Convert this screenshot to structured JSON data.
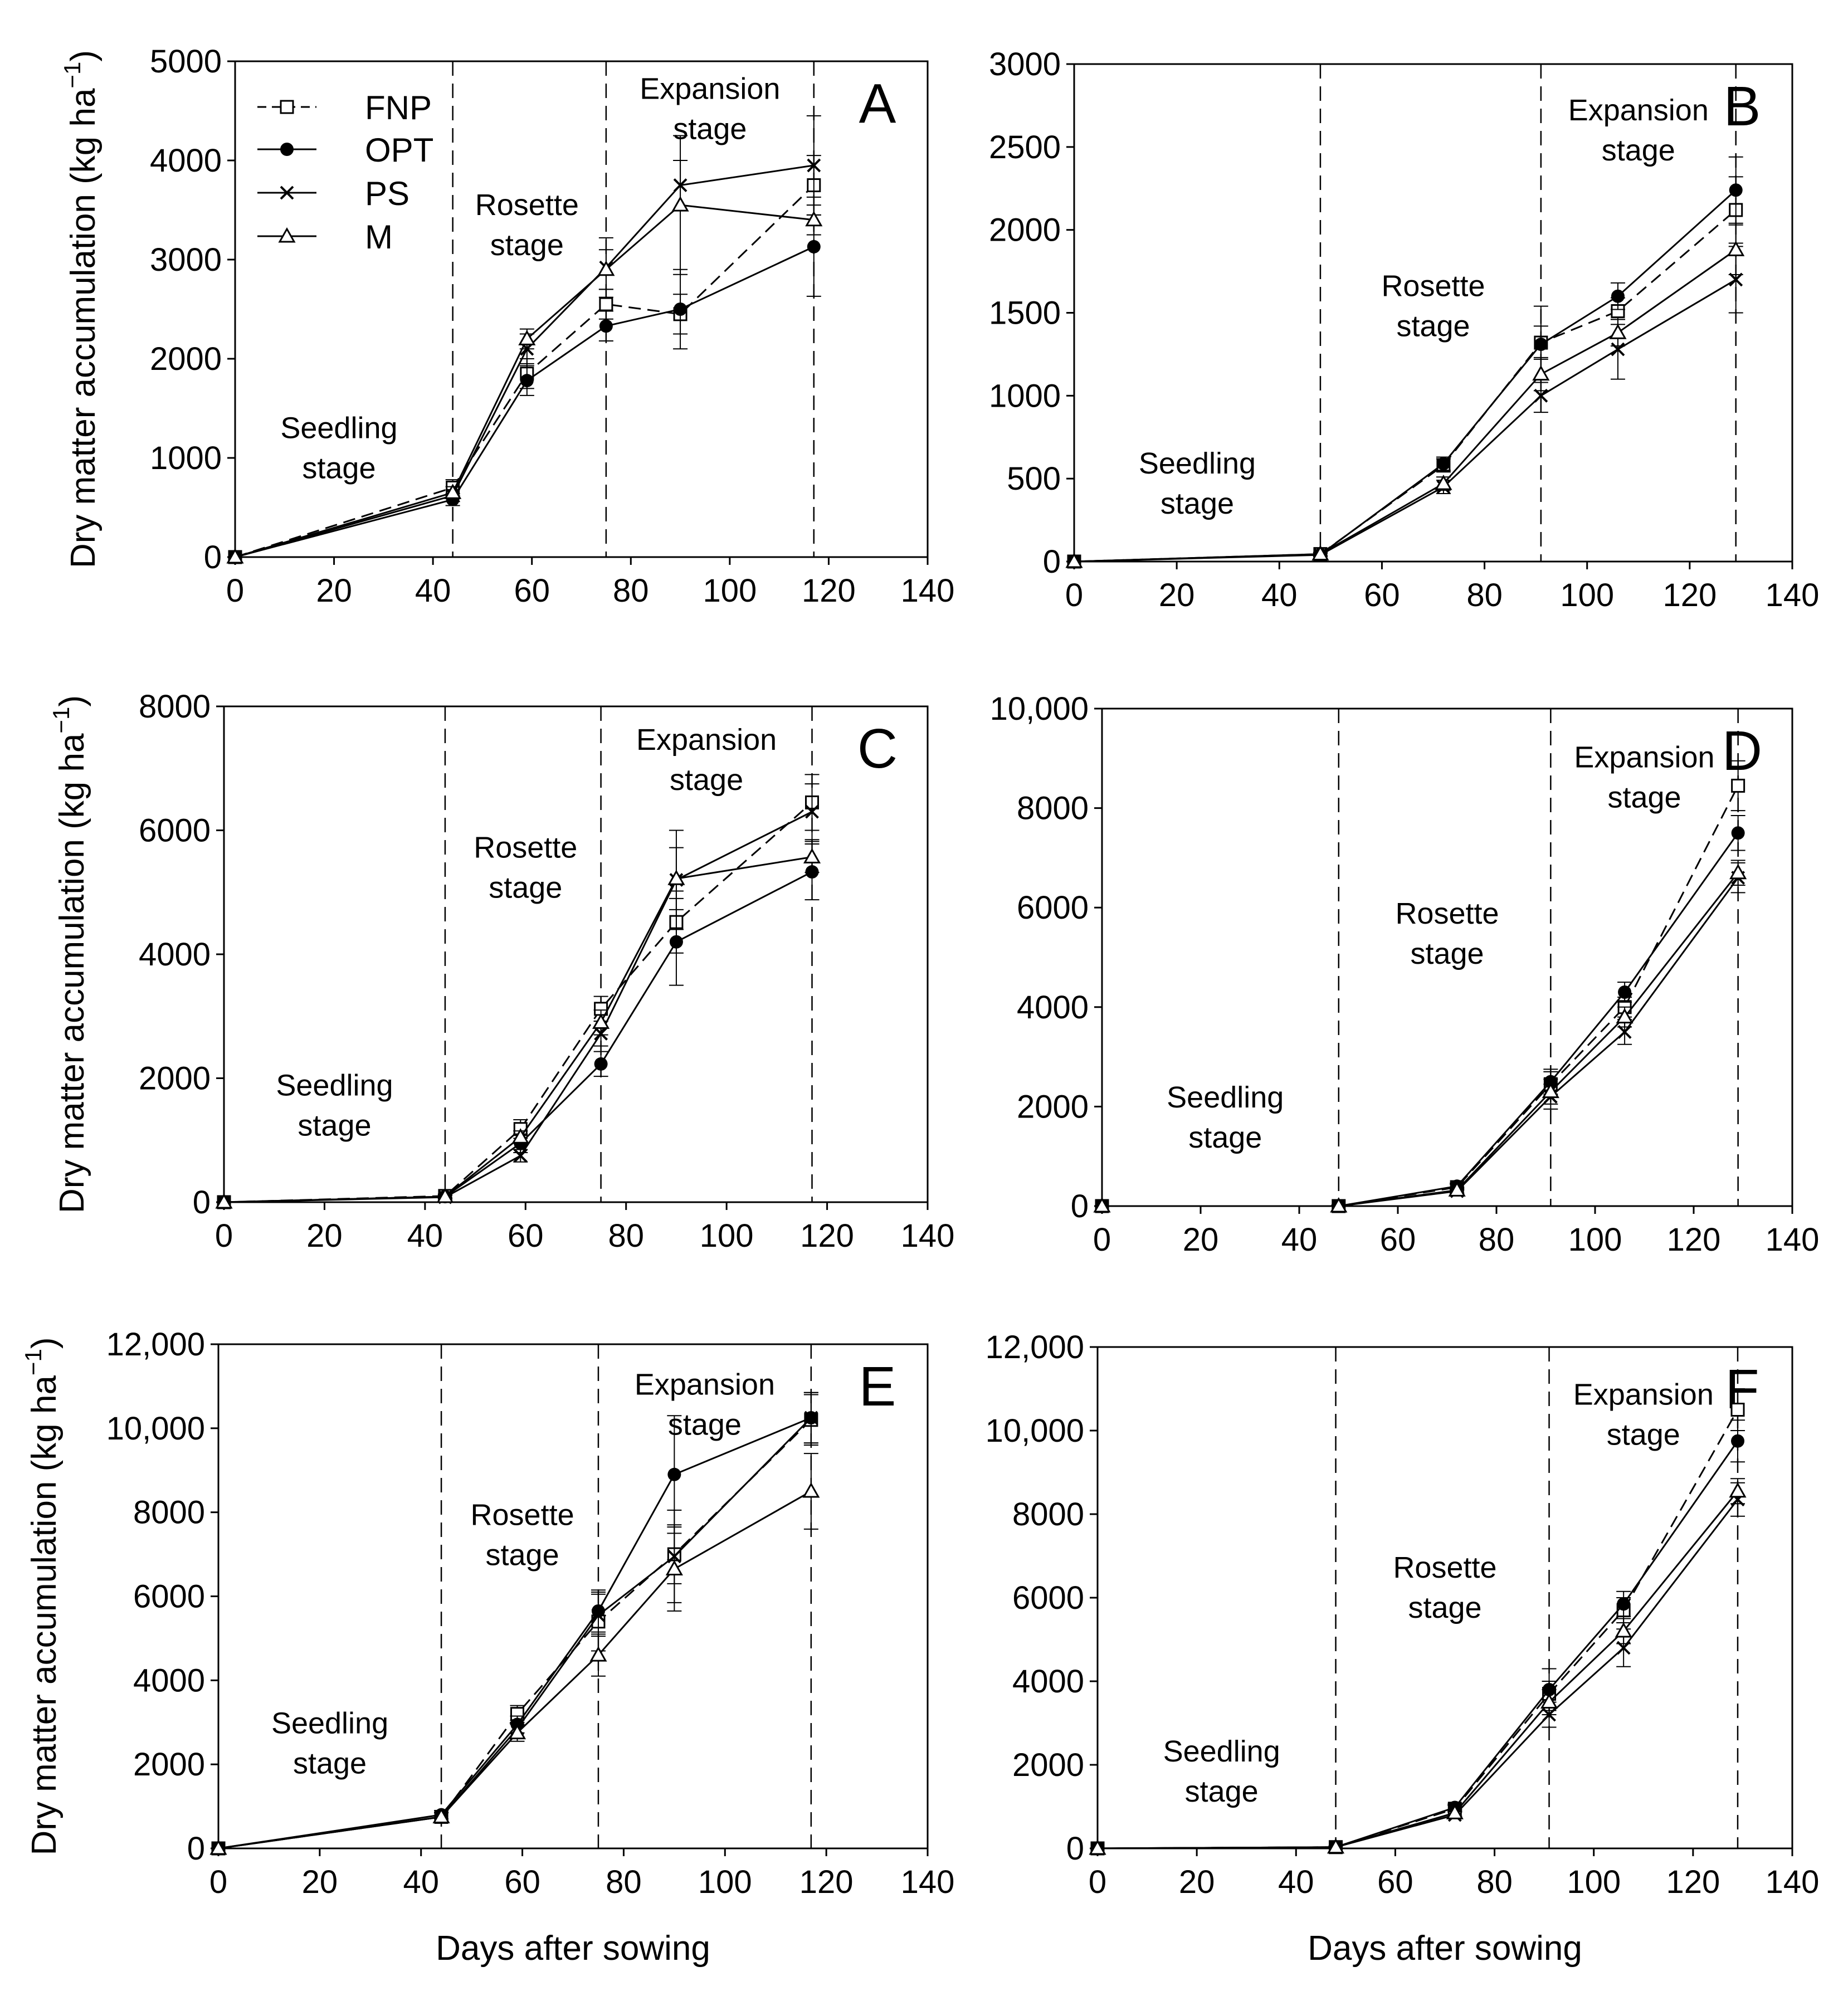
{
  "figure": {
    "ylabel": "Dry matter accumulation (kg ha",
    "ylabel_sup": "−1",
    "ylabel_close": ")",
    "xlabel": "Days after sowing"
  },
  "legend": {
    "FNP": "FNP",
    "OPT": "OPT",
    "PS": "PS",
    "M": "M"
  },
  "colors": {
    "ink": "#000000",
    "background": "#ffffff"
  },
  "chart_data": [
    {
      "type": "line",
      "panel": "A",
      "xlim": [
        0,
        140
      ],
      "ylim": [
        0,
        5000
      ],
      "xticks": [
        0,
        20,
        40,
        60,
        80,
        100,
        120,
        140
      ],
      "yticks": [
        0,
        1000,
        2000,
        3000,
        4000,
        5000
      ],
      "ytick_labels": [
        "0",
        "1000",
        "2000",
        "3000",
        "4000",
        "5000"
      ],
      "stage_boundaries": [
        44,
        75,
        117
      ],
      "stages": [
        {
          "line1": "Seedling",
          "line2": "stage",
          "x": 21,
          "y": 1200
        },
        {
          "line1": "Rosette",
          "line2": "stage",
          "x": 59,
          "y": 3450
        },
        {
          "line1": "Expansion",
          "line2": "stage",
          "x": 96,
          "y": 4620
        }
      ],
      "series": [
        {
          "name": "FNP",
          "x": [
            0,
            44,
            59,
            75,
            90,
            117
          ],
          "values": [
            0,
            700,
            1850,
            2550,
            2450,
            3750
          ],
          "errors": [
            0,
            80,
            150,
            150,
            200,
            300
          ]
        },
        {
          "name": "OPT",
          "x": [
            0,
            44,
            59,
            75,
            90,
            117
          ],
          "values": [
            0,
            580,
            1780,
            2330,
            2500,
            3130
          ],
          "errors": [
            0,
            60,
            150,
            150,
            400,
            500
          ]
        },
        {
          "name": "PS",
          "x": [
            0,
            44,
            59,
            75,
            90,
            117
          ],
          "values": [
            0,
            620,
            2100,
            2920,
            3750,
            3950
          ],
          "errors": [
            0,
            60,
            150,
            300,
            250,
            500
          ]
        },
        {
          "name": "M",
          "x": [
            0,
            44,
            59,
            75,
            90,
            117
          ],
          "values": [
            0,
            650,
            2200,
            2900,
            3550,
            3400
          ],
          "errors": [
            0,
            60,
            100,
            200,
            700,
            150
          ]
        }
      ]
    },
    {
      "type": "line",
      "panel": "B",
      "xlim": [
        0,
        140
      ],
      "ylim": [
        0,
        3000
      ],
      "xticks": [
        0,
        20,
        40,
        60,
        80,
        100,
        120,
        140
      ],
      "yticks": [
        0,
        500,
        1000,
        1500,
        2000,
        2500,
        3000
      ],
      "ytick_labels": [
        "0",
        "500",
        "1000",
        "1500",
        "2000",
        "2500",
        "3000"
      ],
      "stage_boundaries": [
        48,
        91,
        129
      ],
      "stages": [
        {
          "line1": "Seedling",
          "line2": "stage",
          "x": 24,
          "y": 530
        },
        {
          "line1": "Rosette",
          "line2": "stage",
          "x": 70,
          "y": 1600
        },
        {
          "line1": "Expansion",
          "line2": "stage",
          "x": 110,
          "y": 2660
        }
      ],
      "series": [
        {
          "name": "FNP",
          "x": [
            0,
            48,
            72,
            91,
            106,
            129
          ],
          "values": [
            0,
            45,
            580,
            1320,
            1510,
            2120
          ],
          "errors": [
            0,
            10,
            40,
            100,
            80,
            200
          ]
        },
        {
          "name": "OPT",
          "x": [
            0,
            48,
            72,
            91,
            106,
            129
          ],
          "values": [
            0,
            42,
            590,
            1310,
            1600,
            2240
          ],
          "errors": [
            0,
            10,
            40,
            230,
            80,
            200
          ]
        },
        {
          "name": "PS",
          "x": [
            0,
            48,
            72,
            91,
            106,
            129
          ],
          "values": [
            0,
            40,
            450,
            1000,
            1280,
            1700
          ],
          "errors": [
            0,
            10,
            40,
            100,
            180,
            200
          ]
        },
        {
          "name": "M",
          "x": [
            0,
            48,
            72,
            91,
            106,
            129
          ],
          "values": [
            0,
            45,
            470,
            1130,
            1380,
            1880
          ],
          "errors": [
            0,
            10,
            40,
            100,
            80,
            150
          ]
        }
      ]
    },
    {
      "type": "line",
      "panel": "C",
      "xlim": [
        0,
        140
      ],
      "ylim": [
        0,
        8000
      ],
      "xticks": [
        0,
        20,
        40,
        60,
        80,
        100,
        120,
        140
      ],
      "yticks": [
        0,
        2000,
        4000,
        6000,
        8000
      ],
      "ytick_labels": [
        "0",
        "2000",
        "4000",
        "6000",
        "8000"
      ],
      "stage_boundaries": [
        44,
        75,
        117
      ],
      "stages": [
        {
          "line1": "Seedling",
          "line2": "stage",
          "x": 22,
          "y": 1720
        },
        {
          "line1": "Rosette",
          "line2": "stage",
          "x": 60,
          "y": 5560
        },
        {
          "line1": "Expansion",
          "line2": "stage",
          "x": 96,
          "y": 7300
        }
      ],
      "series": [
        {
          "name": "FNP",
          "x": [
            0,
            44,
            59,
            75,
            90,
            117
          ],
          "values": [
            0,
            100,
            1180,
            3120,
            4520,
            6450
          ],
          "errors": [
            0,
            30,
            150,
            200,
            500,
            450
          ]
        },
        {
          "name": "OPT",
          "x": [
            0,
            44,
            59,
            75,
            90,
            117
          ],
          "values": [
            0,
            90,
            950,
            2230,
            4200,
            5330
          ],
          "errors": [
            0,
            30,
            150,
            200,
            700,
            450
          ]
        },
        {
          "name": "PS",
          "x": [
            0,
            44,
            59,
            75,
            90,
            117
          ],
          "values": [
            0,
            80,
            750,
            2720,
            5200,
            6300
          ],
          "errors": [
            0,
            30,
            100,
            200,
            800,
            450
          ]
        },
        {
          "name": "M",
          "x": [
            0,
            44,
            59,
            75,
            90,
            117
          ],
          "values": [
            0,
            90,
            1050,
            2900,
            5220,
            5570
          ],
          "errors": [
            0,
            30,
            100,
            200,
            500,
            250
          ]
        }
      ]
    },
    {
      "type": "line",
      "panel": "D",
      "xlim": [
        0,
        140
      ],
      "ylim": [
        0,
        10000
      ],
      "xticks": [
        0,
        20,
        40,
        60,
        80,
        100,
        120,
        140
      ],
      "yticks": [
        0,
        2000,
        4000,
        6000,
        8000,
        10000
      ],
      "ytick_labels": [
        "0",
        "2000",
        "4000",
        "6000",
        "8000",
        "10,000"
      ],
      "stage_boundaries": [
        48,
        91,
        129
      ],
      "stages": [
        {
          "line1": "Seedling",
          "line2": "stage",
          "x": 25,
          "y": 1980
        },
        {
          "line1": "Rosette",
          "line2": "stage",
          "x": 70,
          "y": 5680
        },
        {
          "line1": "Expansion",
          "line2": "stage",
          "x": 110,
          "y": 8820
        }
      ],
      "series": [
        {
          "name": "FNP",
          "x": [
            0,
            48,
            72,
            91,
            106,
            129
          ],
          "values": [
            0,
            0,
            380,
            2450,
            4000,
            8450
          ],
          "errors": [
            0,
            20,
            60,
            250,
            200,
            500
          ]
        },
        {
          "name": "OPT",
          "x": [
            0,
            48,
            72,
            91,
            106,
            129
          ],
          "values": [
            0,
            0,
            400,
            2500,
            4300,
            7500
          ],
          "errors": [
            0,
            20,
            60,
            250,
            200,
            350
          ]
        },
        {
          "name": "PS",
          "x": [
            0,
            48,
            72,
            91,
            106,
            129
          ],
          "values": [
            0,
            0,
            300,
            2200,
            3500,
            6600
          ],
          "errors": [
            0,
            20,
            60,
            250,
            250,
            300
          ]
        },
        {
          "name": "M",
          "x": [
            0,
            48,
            72,
            91,
            106,
            129
          ],
          "values": [
            0,
            0,
            320,
            2300,
            3800,
            6700
          ],
          "errors": [
            0,
            20,
            60,
            250,
            200,
            250
          ]
        }
      ]
    },
    {
      "type": "line",
      "panel": "E",
      "xlim": [
        0,
        140
      ],
      "ylim": [
        0,
        12000
      ],
      "xticks": [
        0,
        20,
        40,
        60,
        80,
        100,
        120,
        140
      ],
      "yticks": [
        0,
        2000,
        4000,
        6000,
        8000,
        10000,
        12000
      ],
      "ytick_labels": [
        "0",
        "2000",
        "4000",
        "6000",
        "8000",
        "10,000",
        "12,000"
      ],
      "stage_boundaries": [
        44,
        75,
        117
      ],
      "stages": [
        {
          "line1": "Seedling",
          "line2": "stage",
          "x": 22,
          "y": 2740
        },
        {
          "line1": "Rosette",
          "line2": "stage",
          "x": 60,
          "y": 7700
        },
        {
          "line1": "Expansion",
          "line2": "stage",
          "x": 96,
          "y": 10800
        }
      ],
      "series": [
        {
          "name": "FNP",
          "x": [
            0,
            44,
            59,
            75,
            90,
            117
          ],
          "values": [
            0,
            750,
            3200,
            5400,
            7000,
            10200
          ],
          "errors": [
            0,
            100,
            200,
            700,
            700,
            600
          ]
        },
        {
          "name": "OPT",
          "x": [
            0,
            44,
            59,
            75,
            90,
            117
          ],
          "values": [
            0,
            800,
            2950,
            5650,
            8900,
            10250
          ],
          "errors": [
            0,
            100,
            200,
            500,
            1400,
            600
          ]
        },
        {
          "name": "PS",
          "x": [
            0,
            44,
            59,
            75,
            90,
            117
          ],
          "values": [
            0,
            750,
            2850,
            5550,
            6950,
            10250
          ],
          "errors": [
            0,
            100,
            200,
            500,
            1100,
            600
          ]
        },
        {
          "name": "M",
          "x": [
            0,
            44,
            59,
            75,
            90,
            117
          ],
          "values": [
            0,
            750,
            2750,
            4600,
            6650,
            8500
          ],
          "errors": [
            0,
            100,
            200,
            500,
            1000,
            900
          ]
        }
      ]
    },
    {
      "type": "line",
      "panel": "F",
      "xlim": [
        0,
        140
      ],
      "ylim": [
        0,
        12000
      ],
      "xticks": [
        0,
        20,
        40,
        60,
        80,
        100,
        120,
        140
      ],
      "yticks": [
        0,
        2000,
        4000,
        6000,
        8000,
        10000,
        12000
      ],
      "ytick_labels": [
        "0",
        "2000",
        "4000",
        "6000",
        "8000",
        "10,000",
        "12,000"
      ],
      "stage_boundaries": [
        48,
        91,
        129
      ],
      "stages": [
        {
          "line1": "Seedling",
          "line2": "stage",
          "x": 25,
          "y": 2080
        },
        {
          "line1": "Rosette",
          "line2": "stage",
          "x": 70,
          "y": 6480
        },
        {
          "line1": "Expansion",
          "line2": "stage",
          "x": 110,
          "y": 10620
        }
      ],
      "series": [
        {
          "name": "FNP",
          "x": [
            0,
            48,
            72,
            91,
            106,
            129
          ],
          "values": [
            0,
            30,
            950,
            3700,
            5700,
            10500
          ],
          "errors": [
            0,
            30,
            80,
            300,
            300,
            500
          ]
        },
        {
          "name": "OPT",
          "x": [
            0,
            48,
            72,
            91,
            106,
            129
          ],
          "values": [
            0,
            30,
            980,
            3800,
            5850,
            9750
          ],
          "errors": [
            0,
            30,
            80,
            500,
            300,
            500
          ]
        },
        {
          "name": "PS",
          "x": [
            0,
            48,
            72,
            91,
            106,
            129
          ],
          "values": [
            0,
            30,
            800,
            3200,
            4800,
            8350
          ],
          "errors": [
            0,
            30,
            80,
            300,
            450,
            400
          ]
        },
        {
          "name": "M",
          "x": [
            0,
            48,
            72,
            91,
            106,
            129
          ],
          "values": [
            0,
            30,
            850,
            3500,
            5200,
            8550
          ],
          "errors": [
            0,
            30,
            80,
            300,
            300,
            300
          ]
        }
      ]
    }
  ]
}
